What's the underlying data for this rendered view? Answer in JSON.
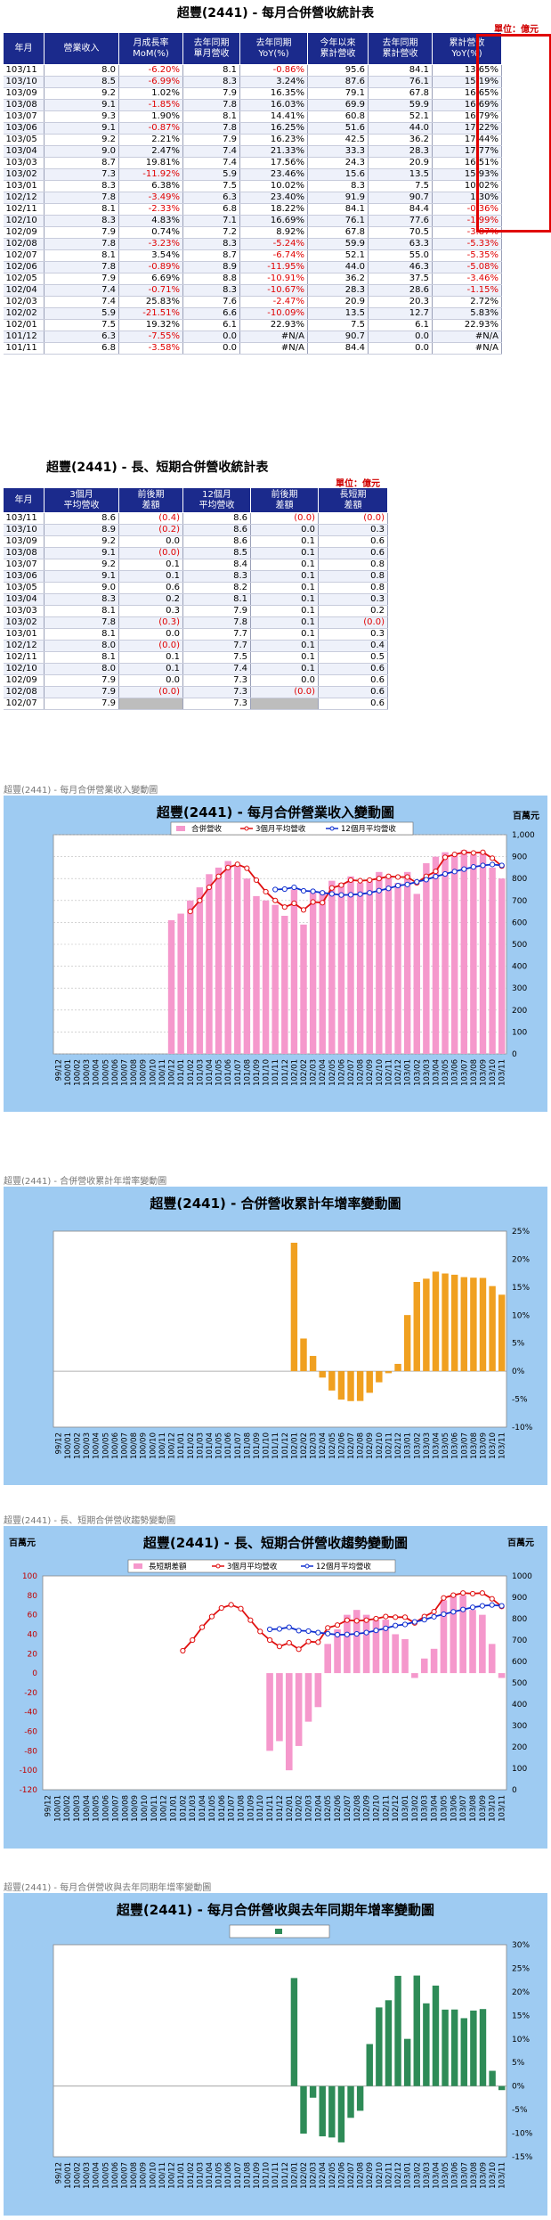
{
  "table1": {
    "title": "超豐(2441) - 每月合併營收統計表",
    "unit": "單位：億元",
    "headers": [
      [
        "年月",
        ""
      ],
      [
        "營業收入",
        ""
      ],
      [
        "月成長率",
        "MoM(%)"
      ],
      [
        "去年同期",
        "單月營收"
      ],
      [
        "去年同期",
        "YoY(%)"
      ],
      [
        "今年以來",
        "累計營收"
      ],
      [
        "去年同期",
        "累計營收"
      ],
      [
        "累計營收",
        "YoY(%)"
      ]
    ],
    "rows": [
      [
        "103/11",
        "8.0",
        "-6.20%",
        "8.1",
        "-0.86%",
        "95.6",
        "84.1",
        "13.65%"
      ],
      [
        "103/10",
        "8.5",
        "-6.99%",
        "8.3",
        "3.24%",
        "87.6",
        "76.1",
        "15.19%"
      ],
      [
        "103/09",
        "9.2",
        "1.02%",
        "7.9",
        "16.35%",
        "79.1",
        "67.8",
        "16.65%"
      ],
      [
        "103/08",
        "9.1",
        "-1.85%",
        "7.8",
        "16.03%",
        "69.9",
        "59.9",
        "16.69%"
      ],
      [
        "103/07",
        "9.3",
        "1.90%",
        "8.1",
        "14.41%",
        "60.8",
        "52.1",
        "16.79%"
      ],
      [
        "103/06",
        "9.1",
        "-0.87%",
        "7.8",
        "16.25%",
        "51.6",
        "44.0",
        "17.22%"
      ],
      [
        "103/05",
        "9.2",
        "2.21%",
        "7.9",
        "16.23%",
        "42.5",
        "36.2",
        "17.44%"
      ],
      [
        "103/04",
        "9.0",
        "2.47%",
        "7.4",
        "21.33%",
        "33.3",
        "28.3",
        "17.77%"
      ],
      [
        "103/03",
        "8.7",
        "19.81%",
        "7.4",
        "17.56%",
        "24.3",
        "20.9",
        "16.51%"
      ],
      [
        "103/02",
        "7.3",
        "-11.92%",
        "5.9",
        "23.46%",
        "15.6",
        "13.5",
        "15.93%"
      ],
      [
        "103/01",
        "8.3",
        "6.38%",
        "7.5",
        "10.02%",
        "8.3",
        "7.5",
        "10.02%"
      ],
      [
        "102/12",
        "7.8",
        "-3.49%",
        "6.3",
        "23.40%",
        "91.9",
        "90.7",
        "1.30%"
      ],
      [
        "102/11",
        "8.1",
        "-2.33%",
        "6.8",
        "18.22%",
        "84.1",
        "84.4",
        "-0.36%"
      ],
      [
        "102/10",
        "8.3",
        "4.83%",
        "7.1",
        "16.69%",
        "76.1",
        "77.6",
        "-1.99%"
      ],
      [
        "102/09",
        "7.9",
        "0.74%",
        "7.2",
        "8.92%",
        "67.8",
        "70.5",
        "-3.87%"
      ],
      [
        "102/08",
        "7.8",
        "-3.23%",
        "8.3",
        "-5.24%",
        "59.9",
        "63.3",
        "-5.33%"
      ],
      [
        "102/07",
        "8.1",
        "3.54%",
        "8.7",
        "-6.74%",
        "52.1",
        "55.0",
        "-5.35%"
      ],
      [
        "102/06",
        "7.8",
        "-0.89%",
        "8.9",
        "-11.95%",
        "44.0",
        "46.3",
        "-5.08%"
      ],
      [
        "102/05",
        "7.9",
        "6.69%",
        "8.8",
        "-10.91%",
        "36.2",
        "37.5",
        "-3.46%"
      ],
      [
        "102/04",
        "7.4",
        "-0.71%",
        "8.3",
        "-10.67%",
        "28.3",
        "28.6",
        "-1.15%"
      ],
      [
        "102/03",
        "7.4",
        "25.83%",
        "7.6",
        "-2.47%",
        "20.9",
        "20.3",
        "2.72%"
      ],
      [
        "102/02",
        "5.9",
        "-21.51%",
        "6.6",
        "-10.09%",
        "13.5",
        "12.7",
        "5.83%"
      ],
      [
        "102/01",
        "7.5",
        "19.32%",
        "6.1",
        "22.93%",
        "7.5",
        "6.1",
        "22.93%"
      ],
      [
        "101/12",
        "6.3",
        "-7.55%",
        "0.0",
        "#N/A",
        "90.7",
        "0.0",
        "#N/A"
      ],
      [
        "101/11",
        "6.8",
        "-3.58%",
        "0.0",
        "#N/A",
        "84.4",
        "0.0",
        "#N/A"
      ]
    ]
  },
  "table2": {
    "title": "超豐(2441) - 長、短期合併營收統計表",
    "unit": "單位：億元",
    "headers": [
      [
        "年月",
        ""
      ],
      [
        "3個月",
        "平均營收"
      ],
      [
        "前後期",
        "差額"
      ],
      [
        "12個月",
        "平均營收"
      ],
      [
        "前後期",
        "差額"
      ],
      [
        "長短期",
        "差額"
      ]
    ],
    "rows": [
      [
        "103/11",
        "8.6",
        "(0.4)",
        "8.6",
        "(0.0)",
        "(0.0)"
      ],
      [
        "103/10",
        "8.9",
        "(0.2)",
        "8.6",
        "0.0",
        "0.3"
      ],
      [
        "103/09",
        "9.2",
        "0.0",
        "8.6",
        "0.1",
        "0.6"
      ],
      [
        "103/08",
        "9.1",
        "(0.0)",
        "8.5",
        "0.1",
        "0.6"
      ],
      [
        "103/07",
        "9.2",
        "0.1",
        "8.4",
        "0.1",
        "0.8"
      ],
      [
        "103/06",
        "9.1",
        "0.1",
        "8.3",
        "0.1",
        "0.8"
      ],
      [
        "103/05",
        "9.0",
        "0.6",
        "8.2",
        "0.1",
        "0.8"
      ],
      [
        "103/04",
        "8.3",
        "0.2",
        "8.1",
        "0.1",
        "0.3"
      ],
      [
        "103/03",
        "8.1",
        "0.3",
        "7.9",
        "0.1",
        "0.2"
      ],
      [
        "103/02",
        "7.8",
        "(0.3)",
        "7.8",
        "0.1",
        "(0.0)"
      ],
      [
        "103/01",
        "8.1",
        "0.0",
        "7.7",
        "0.1",
        "0.3"
      ],
      [
        "102/12",
        "8.0",
        "(0.0)",
        "7.7",
        "0.1",
        "0.4"
      ],
      [
        "102/11",
        "8.1",
        "0.1",
        "7.5",
        "0.1",
        "0.5"
      ],
      [
        "102/10",
        "8.0",
        "0.1",
        "7.4",
        "0.1",
        "0.6"
      ],
      [
        "102/09",
        "7.9",
        "0.0",
        "7.3",
        "0.0",
        "0.6"
      ],
      [
        "102/08",
        "7.9",
        "(0.0)",
        "7.3",
        "(0.0)",
        "0.6"
      ],
      [
        "102/07",
        "7.9",
        "",
        "7.3",
        "",
        "0.6"
      ]
    ]
  },
  "chart_data": [
    {
      "type": "bar",
      "caption": "超豐(2441) - 每月合併營業收入變動圖",
      "title": "超豐(2441) - 每月合併營業收入變動圖",
      "unit_label": "百萬元",
      "legend": [
        "合併營收",
        "3個月平均營收",
        "12個月平均營收"
      ],
      "yticks": [
        "0",
        "100",
        "200",
        "300",
        "400",
        "500",
        "600",
        "700",
        "800",
        "900",
        "1,000"
      ],
      "ylim": [
        0,
        1000
      ],
      "categories": [
        "99/12",
        "100/01",
        "100/02",
        "100/03",
        "100/04",
        "100/05",
        "100/06",
        "100/07",
        "100/08",
        "100/09",
        "100/10",
        "100/11",
        "100/12",
        "101/01",
        "101/02",
        "101/03",
        "101/04",
        "101/05",
        "101/06",
        "101/07",
        "101/08",
        "101/09",
        "101/10",
        "101/11",
        "101/12",
        "102/01",
        "102/02",
        "102/03",
        "102/04",
        "102/05",
        "102/06",
        "102/07",
        "102/08",
        "102/09",
        "102/10",
        "102/11",
        "102/12",
        "103/01",
        "103/02",
        "103/03",
        "103/04",
        "103/05",
        "103/06",
        "103/07",
        "103/08",
        "103/09",
        "103/10",
        "103/11"
      ],
      "revenue": [
        null,
        null,
        null,
        null,
        null,
        null,
        null,
        null,
        null,
        null,
        null,
        null,
        610,
        640,
        700,
        760,
        820,
        850,
        880,
        860,
        800,
        720,
        700,
        680,
        630,
        750,
        590,
        740,
        740,
        790,
        780,
        810,
        780,
        790,
        830,
        810,
        780,
        830,
        730,
        870,
        900,
        920,
        910,
        930,
        910,
        920,
        850,
        800
      ],
      "avg3": [
        null,
        null,
        null,
        null,
        null,
        null,
        null,
        null,
        null,
        null,
        null,
        null,
        null,
        null,
        650,
        700,
        760,
        810,
        850,
        865,
        847,
        793,
        740,
        700,
        670,
        687,
        657,
        693,
        690,
        757,
        770,
        793,
        790,
        793,
        800,
        810,
        807,
        807,
        780,
        810,
        833,
        897,
        910,
        920,
        917,
        920,
        893,
        857
      ],
      "avg12": [
        null,
        null,
        null,
        null,
        null,
        null,
        null,
        null,
        null,
        null,
        null,
        null,
        null,
        null,
        null,
        null,
        null,
        null,
        null,
        null,
        null,
        null,
        null,
        750,
        752,
        760,
        744,
        742,
        735,
        730,
        725,
        726,
        729,
        735,
        745,
        755,
        768,
        773,
        785,
        795,
        809,
        821,
        832,
        843,
        853,
        860,
        864,
        860
      ]
    },
    {
      "type": "bar",
      "caption": "超豐(2441) - 合併營收累計年增率變動圖",
      "title": "超豐(2441) - 合併營收累計年增率變動圖",
      "yticks": [
        "-10%",
        "-5%",
        "0%",
        "5%",
        "10%",
        "15%",
        "20%",
        "25%"
      ],
      "ylim": [
        -10,
        25
      ],
      "values": [
        null,
        null,
        null,
        null,
        null,
        null,
        null,
        null,
        null,
        null,
        null,
        null,
        null,
        null,
        null,
        null,
        null,
        null,
        null,
        null,
        null,
        null,
        null,
        null,
        null,
        22.93,
        5.83,
        2.72,
        -1.15,
        -3.46,
        -5.08,
        -5.35,
        -5.33,
        -3.87,
        -1.99,
        -0.36,
        1.3,
        10.02,
        15.93,
        16.51,
        17.77,
        17.44,
        17.22,
        16.79,
        16.69,
        16.65,
        15.19,
        13.65
      ]
    },
    {
      "type": "bar",
      "caption": "超豐(2441) - 長、短期合併營收趨勢變動圖",
      "title": "超豐(2441) - 長、短期合併營收趨勢變動圖",
      "unit_label_left": "百萬元",
      "unit_label_right": "百萬元",
      "legend": [
        "長短期差額",
        "3個月平均營收",
        "12個月平均營收"
      ],
      "yticks_left": [
        "-120",
        "-100",
        "-80",
        "-60",
        "-40",
        "-20",
        "0",
        "20",
        "40",
        "60",
        "80",
        "100"
      ],
      "ylim_left": [
        -120,
        100
      ],
      "yticks_right": [
        "0",
        "100",
        "200",
        "300",
        "400",
        "500",
        "600",
        "700",
        "800",
        "900",
        "1000"
      ],
      "ylim_right": [
        0,
        1000
      ],
      "diff": [
        null,
        null,
        null,
        null,
        null,
        null,
        null,
        null,
        null,
        null,
        null,
        null,
        null,
        null,
        null,
        null,
        null,
        null,
        null,
        null,
        null,
        null,
        null,
        -80,
        -70,
        -100,
        -75,
        -50,
        -35,
        30,
        45,
        60,
        65,
        60,
        55,
        55,
        40,
        35,
        -5,
        15,
        25,
        75,
        80,
        80,
        65,
        60,
        30,
        -5
      ]
    },
    {
      "type": "bar",
      "caption": "超豐(2441) - 每月合併營收與去年同期年增率變動圖",
      "title": "超豐(2441) - 每月合併營收與去年同期年增率變動圖",
      "yticks": [
        "-15%",
        "-10%",
        "-5%",
        "0%",
        "5%",
        "10%",
        "15%",
        "20%",
        "25%",
        "30%"
      ],
      "ylim": [
        -15,
        30
      ],
      "values": [
        null,
        null,
        null,
        null,
        null,
        null,
        null,
        null,
        null,
        null,
        null,
        null,
        null,
        null,
        null,
        null,
        null,
        null,
        null,
        null,
        null,
        null,
        null,
        null,
        null,
        22.93,
        -10.09,
        -2.47,
        -10.67,
        -10.91,
        -11.95,
        -6.74,
        -5.24,
        8.92,
        16.69,
        18.22,
        23.4,
        10.02,
        23.46,
        17.56,
        21.33,
        16.23,
        16.25,
        14.41,
        16.03,
        16.35,
        3.24,
        -0.86
      ]
    }
  ]
}
